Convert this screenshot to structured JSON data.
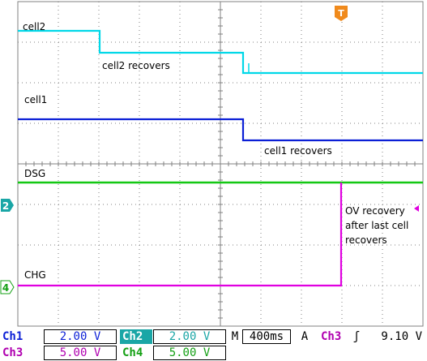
{
  "channels": [
    {
      "id": "Ch1",
      "scale": "2.00 V",
      "color": "#0b1fd6"
    },
    {
      "id": "Ch2",
      "scale": "2.00 V",
      "color": "#00d8e8"
    },
    {
      "id": "Ch3",
      "scale": "5.00 V",
      "color": "#e000e0"
    },
    {
      "id": "Ch4",
      "scale": "5.00 V",
      "color": "#14c814"
    }
  ],
  "traces": {
    "cell2": {
      "label": "cell2",
      "annotation": "cell2 recovers"
    },
    "cell1": {
      "label": "cell1",
      "annotation": "cell1 recovers"
    },
    "dsg": {
      "label": "DSG"
    },
    "chg": {
      "label": "CHG"
    },
    "ov_note": [
      "OV recovery",
      "after last cell",
      "recovers"
    ]
  },
  "ground_markers": {
    "ch2": "2",
    "ch4": "4"
  },
  "trigger_marker": "T",
  "horizontal": {
    "mode_label": "M",
    "timebase": "400ms"
  },
  "trigger": {
    "mode_label": "A",
    "source": "Ch3",
    "slope_symbol": "ʃ",
    "level": "9.10 V"
  },
  "colors": {
    "background": "#ffffff",
    "grid": "#808080",
    "trigger_marker": "#f08a1c"
  }
}
